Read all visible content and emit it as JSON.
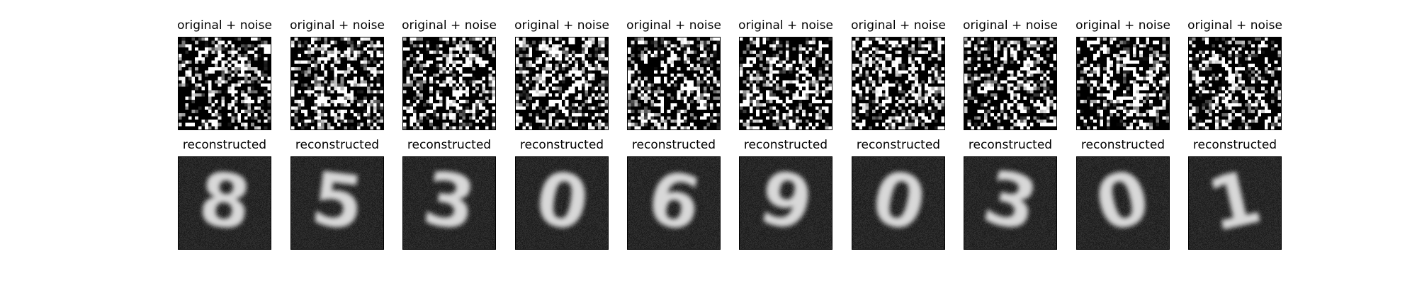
{
  "figure": {
    "noisy_title": "original + noise",
    "recon_title": "reconstructed",
    "panels": [
      {
        "digit": "8"
      },
      {
        "digit": "5"
      },
      {
        "digit": "3"
      },
      {
        "digit": "0"
      },
      {
        "digit": "6"
      },
      {
        "digit": "9"
      },
      {
        "digit": "0"
      },
      {
        "digit": "3"
      },
      {
        "digit": "0"
      },
      {
        "digit": "1"
      }
    ]
  }
}
